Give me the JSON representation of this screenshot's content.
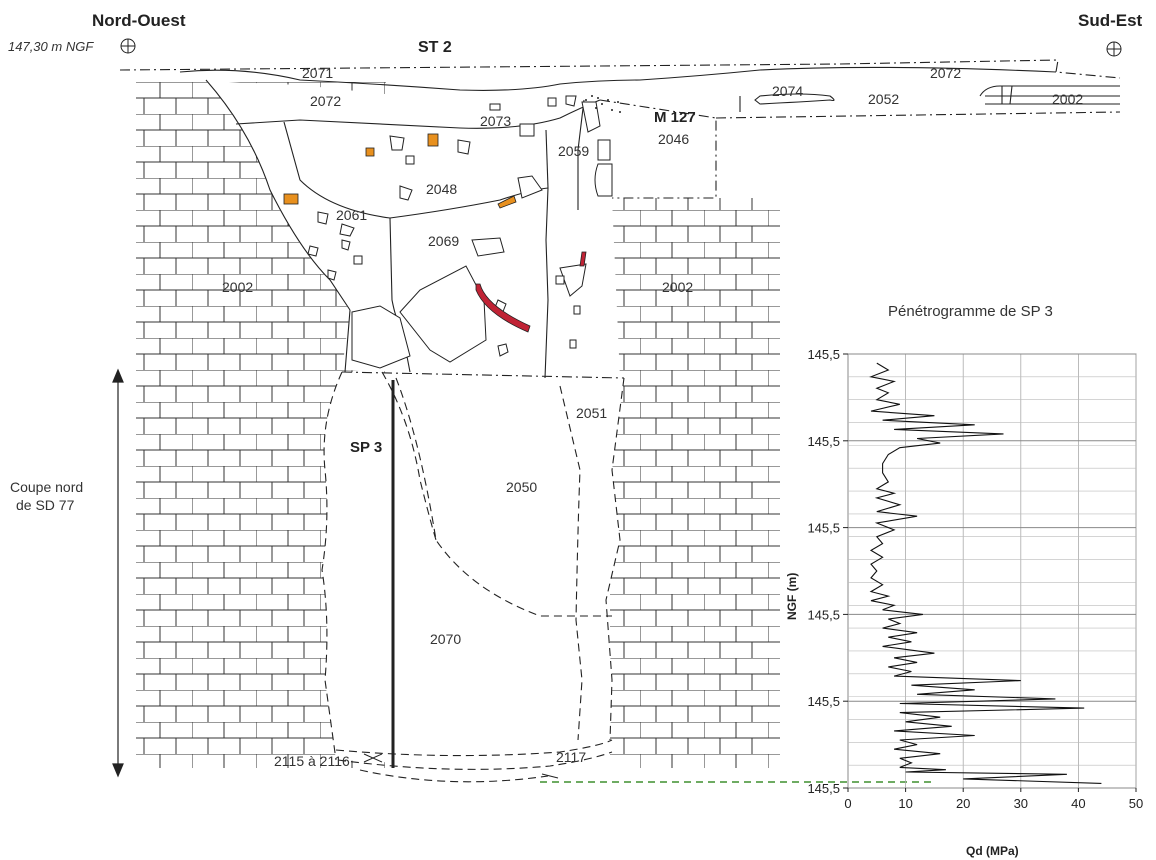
{
  "header": {
    "left_title": "Nord-Ouest",
    "left_altitude": "147,30 m NGF",
    "center_title": "ST 2",
    "right_title": "Sud-Est"
  },
  "units": {
    "u2071": "2071",
    "u2072a": "2072",
    "u2073": "2073",
    "u2072b": "2072",
    "u2074": "2074",
    "u2052": "2052",
    "u2002a": "2002",
    "u2046": "2046",
    "u2059": "2059",
    "u2048": "2048",
    "u2061": "2061",
    "u2069": "2069",
    "u2002b": "2002",
    "u2002c": "2002",
    "u2051": "2051",
    "u2050": "2050",
    "u2070": "2070",
    "u2115": "2115 à 2116",
    "u2117": "2117"
  },
  "structures": {
    "m127": "M 127",
    "sp3": "SP 3"
  },
  "section_label": [
    "Coupe nord",
    "de SD 77"
  ],
  "chart_data": {
    "type": "line",
    "title": "Pénétrogramme de SP 3",
    "xlabel": "Qd (MPa)",
    "ylabel": "NGF (m)",
    "xlim": [
      0,
      50
    ],
    "x_ticks": [
      "0",
      "10",
      "20",
      "30",
      "40",
      "50"
    ],
    "y_ticks": [
      "145,5",
      "145,5",
      "145,5",
      "145,5",
      "145,5",
      "145,5"
    ],
    "y_note": "depth axis, 0 = top of chart frame, 9.5 = bottom",
    "series": [
      {
        "qd": [
          5,
          7,
          4,
          8,
          5,
          7,
          5,
          9,
          4,
          15,
          6,
          22,
          8,
          27,
          12,
          16,
          9,
          7,
          6,
          6,
          7,
          5,
          8,
          5,
          9,
          5,
          12,
          5,
          8,
          5,
          6,
          4,
          6,
          4,
          5,
          4,
          6,
          4,
          7,
          4,
          8,
          6,
          13,
          7,
          9,
          6,
          12,
          7,
          11,
          6,
          15,
          8,
          12,
          7,
          11,
          8,
          30,
          11,
          22,
          12,
          36,
          9,
          41,
          9,
          16,
          10,
          18,
          8,
          22,
          9,
          12,
          8,
          16,
          9,
          11,
          9,
          17,
          10,
          38,
          20,
          44
        ],
        "depth": [
          0.2,
          0.35,
          0.5,
          0.6,
          0.75,
          0.85,
          1.0,
          1.1,
          1.25,
          1.35,
          1.45,
          1.55,
          1.65,
          1.75,
          1.85,
          1.95,
          2.05,
          2.2,
          2.4,
          2.6,
          2.8,
          2.95,
          3.05,
          3.15,
          3.3,
          3.45,
          3.55,
          3.7,
          3.85,
          4.0,
          4.15,
          4.3,
          4.45,
          4.6,
          4.75,
          4.9,
          5.05,
          5.2,
          5.3,
          5.4,
          5.5,
          5.6,
          5.7,
          5.8,
          5.9,
          6.0,
          6.1,
          6.2,
          6.3,
          6.4,
          6.55,
          6.65,
          6.75,
          6.85,
          6.95,
          7.05,
          7.15,
          7.25,
          7.35,
          7.45,
          7.55,
          7.65,
          7.75,
          7.85,
          7.95,
          8.05,
          8.15,
          8.25,
          8.35,
          8.45,
          8.55,
          8.65,
          8.75,
          8.85,
          8.95,
          9.05,
          9.1,
          9.15,
          9.2,
          9.3,
          9.4
        ]
      }
    ]
  }
}
